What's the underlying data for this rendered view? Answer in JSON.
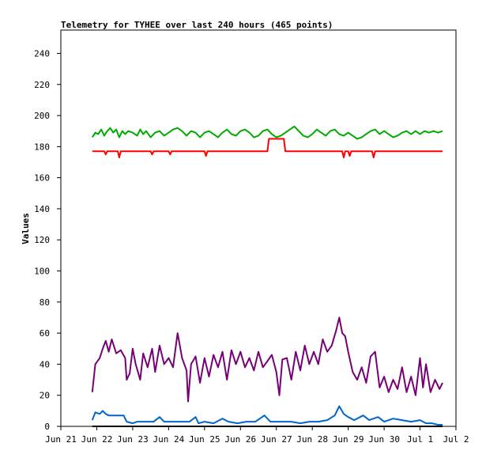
{
  "chart_data": {
    "type": "line",
    "title": "Telemetry for TYHEE over last 240 hours (465 points)",
    "xlabel": "",
    "ylabel": "Values",
    "xlim": [
      "2024-06-21T00:00",
      "2024-07-02T00:00"
    ],
    "ylim": [
      0,
      255
    ],
    "x_ticks": [
      "Jun 21",
      "Jun 22",
      "Jun 23",
      "Jun 24",
      "Jun 25",
      "Jun 26",
      "Jun 27",
      "Jun 28",
      "Jun 29",
      "Jun 30",
      "Jul 1",
      "Jul 2"
    ],
    "y_ticks": [
      0,
      20,
      40,
      60,
      80,
      100,
      120,
      140,
      160,
      180,
      200,
      220,
      240
    ],
    "grid": false,
    "legend": "none",
    "series": [
      {
        "color": "#00aa00",
        "points": [
          [
            "2024-06-21T21:00",
            186
          ],
          [
            "2024-06-21T23:00",
            189
          ],
          [
            "2024-06-22T01:00",
            188
          ],
          [
            "2024-06-22T03:00",
            191
          ],
          [
            "2024-06-22T05:00",
            187
          ],
          [
            "2024-06-22T07:00",
            190
          ],
          [
            "2024-06-22T09:00",
            192
          ],
          [
            "2024-06-22T11:00",
            189
          ],
          [
            "2024-06-22T13:00",
            191
          ],
          [
            "2024-06-22T15:00",
            186
          ],
          [
            "2024-06-22T17:00",
            190
          ],
          [
            "2024-06-22T19:00",
            188
          ],
          [
            "2024-06-22T21:00",
            190
          ],
          [
            "2024-06-23T00:00",
            189
          ],
          [
            "2024-06-23T03:00",
            187
          ],
          [
            "2024-06-23T05:00",
            191
          ],
          [
            "2024-06-23T07:00",
            188
          ],
          [
            "2024-06-23T09:00",
            190
          ],
          [
            "2024-06-23T12:00",
            186
          ],
          [
            "2024-06-23T15:00",
            189
          ],
          [
            "2024-06-23T18:00",
            190
          ],
          [
            "2024-06-23T21:00",
            187
          ],
          [
            "2024-06-24T00:00",
            189
          ],
          [
            "2024-06-24T03:00",
            191
          ],
          [
            "2024-06-24T06:00",
            192
          ],
          [
            "2024-06-24T09:00",
            190
          ],
          [
            "2024-06-24T12:00",
            187
          ],
          [
            "2024-06-24T15:00",
            190
          ],
          [
            "2024-06-24T18:00",
            189
          ],
          [
            "2024-06-24T21:00",
            186
          ],
          [
            "2024-06-25T00:00",
            189
          ],
          [
            "2024-06-25T03:00",
            190
          ],
          [
            "2024-06-25T06:00",
            188
          ],
          [
            "2024-06-25T09:00",
            186
          ],
          [
            "2024-06-25T12:00",
            189
          ],
          [
            "2024-06-25T15:00",
            191
          ],
          [
            "2024-06-25T18:00",
            188
          ],
          [
            "2024-06-25T21:00",
            187
          ],
          [
            "2024-06-26T00:00",
            190
          ],
          [
            "2024-06-26T03:00",
            191
          ],
          [
            "2024-06-26T06:00",
            189
          ],
          [
            "2024-06-26T09:00",
            186
          ],
          [
            "2024-06-26T12:00",
            187
          ],
          [
            "2024-06-26T15:00",
            190
          ],
          [
            "2024-06-26T18:00",
            191
          ],
          [
            "2024-06-26T21:00",
            188
          ],
          [
            "2024-06-27T00:00",
            186
          ],
          [
            "2024-06-27T03:00",
            187
          ],
          [
            "2024-06-27T06:00",
            189
          ],
          [
            "2024-06-27T09:00",
            191
          ],
          [
            "2024-06-27T12:00",
            193
          ],
          [
            "2024-06-27T15:00",
            190
          ],
          [
            "2024-06-27T18:00",
            187
          ],
          [
            "2024-06-27T21:00",
            186
          ],
          [
            "2024-06-28T00:00",
            188
          ],
          [
            "2024-06-28T03:00",
            191
          ],
          [
            "2024-06-28T06:00",
            189
          ],
          [
            "2024-06-28T09:00",
            187
          ],
          [
            "2024-06-28T12:00",
            190
          ],
          [
            "2024-06-28T15:00",
            191
          ],
          [
            "2024-06-28T18:00",
            188
          ],
          [
            "2024-06-28T21:00",
            187
          ],
          [
            "2024-06-29T00:00",
            189
          ],
          [
            "2024-06-29T03:00",
            187
          ],
          [
            "2024-06-29T06:00",
            185
          ],
          [
            "2024-06-29T09:00",
            186
          ],
          [
            "2024-06-29T12:00",
            188
          ],
          [
            "2024-06-29T15:00",
            190
          ],
          [
            "2024-06-29T18:00",
            191
          ],
          [
            "2024-06-29T21:00",
            188
          ],
          [
            "2024-06-30T00:00",
            190
          ],
          [
            "2024-06-30T03:00",
            188
          ],
          [
            "2024-06-30T06:00",
            186
          ],
          [
            "2024-06-30T09:00",
            187
          ],
          [
            "2024-06-30T12:00",
            189
          ],
          [
            "2024-06-30T15:00",
            190
          ],
          [
            "2024-06-30T18:00",
            188
          ],
          [
            "2024-06-30T21:00",
            190
          ],
          [
            "2024-07-01T00:00",
            188
          ],
          [
            "2024-07-01T03:00",
            190
          ],
          [
            "2024-07-01T06:00",
            189
          ],
          [
            "2024-07-01T09:00",
            190
          ],
          [
            "2024-07-01T12:00",
            189
          ],
          [
            "2024-07-01T15:00",
            190
          ]
        ]
      },
      {
        "color": "#ff0000",
        "points": [
          [
            "2024-06-21T21:00",
            177
          ],
          [
            "2024-06-22T05:00",
            177
          ],
          [
            "2024-06-22T06:00",
            175
          ],
          [
            "2024-06-22T07:00",
            177
          ],
          [
            "2024-06-22T14:00",
            177
          ],
          [
            "2024-06-22T15:00",
            173
          ],
          [
            "2024-06-22T16:00",
            177
          ],
          [
            "2024-06-23T12:00",
            177
          ],
          [
            "2024-06-23T13:00",
            175
          ],
          [
            "2024-06-23T14:00",
            177
          ],
          [
            "2024-06-24T00:00",
            177
          ],
          [
            "2024-06-24T01:00",
            175
          ],
          [
            "2024-06-24T02:00",
            177
          ],
          [
            "2024-06-25T00:00",
            177
          ],
          [
            "2024-06-25T01:00",
            174
          ],
          [
            "2024-06-25T02:00",
            177
          ],
          [
            "2024-06-26T18:00",
            177
          ],
          [
            "2024-06-26T19:00",
            185
          ],
          [
            "2024-06-27T05:00",
            185
          ],
          [
            "2024-06-27T06:00",
            177
          ],
          [
            "2024-06-28T20:00",
            177
          ],
          [
            "2024-06-28T21:00",
            173
          ],
          [
            "2024-06-28T22:00",
            177
          ],
          [
            "2024-06-29T00:00",
            177
          ],
          [
            "2024-06-29T01:00",
            174
          ],
          [
            "2024-06-29T02:00",
            177
          ],
          [
            "2024-06-29T16:00",
            177
          ],
          [
            "2024-06-29T17:00",
            173
          ],
          [
            "2024-06-29T18:00",
            177
          ],
          [
            "2024-07-01T15:00",
            177
          ]
        ]
      },
      {
        "color": "#770077",
        "points": [
          [
            "2024-06-21T21:00",
            22
          ],
          [
            "2024-06-21T23:00",
            40
          ],
          [
            "2024-06-22T02:00",
            44
          ],
          [
            "2024-06-22T04:00",
            50
          ],
          [
            "2024-06-22T06:00",
            55
          ],
          [
            "2024-06-22T08:00",
            48
          ],
          [
            "2024-06-22T10:00",
            56
          ],
          [
            "2024-06-22T13:00",
            47
          ],
          [
            "2024-06-22T16:00",
            49
          ],
          [
            "2024-06-22T19:00",
            44
          ],
          [
            "2024-06-22T20:00",
            30
          ],
          [
            "2024-06-22T22:00",
            34
          ],
          [
            "2024-06-23T00:00",
            50
          ],
          [
            "2024-06-23T02:00",
            40
          ],
          [
            "2024-06-23T05:00",
            30
          ],
          [
            "2024-06-23T07:00",
            47
          ],
          [
            "2024-06-23T10:00",
            38
          ],
          [
            "2024-06-23T13:00",
            50
          ],
          [
            "2024-06-23T15:00",
            35
          ],
          [
            "2024-06-23T18:00",
            52
          ],
          [
            "2024-06-23T21:00",
            40
          ],
          [
            "2024-06-24T00:00",
            44
          ],
          [
            "2024-06-24T03:00",
            38
          ],
          [
            "2024-06-24T06:00",
            60
          ],
          [
            "2024-06-24T09:00",
            44
          ],
          [
            "2024-06-24T12:00",
            36
          ],
          [
            "2024-06-24T13:00",
            16
          ],
          [
            "2024-06-24T15:00",
            40
          ],
          [
            "2024-06-24T18:00",
            45
          ],
          [
            "2024-06-24T21:00",
            28
          ],
          [
            "2024-06-25T00:00",
            44
          ],
          [
            "2024-06-25T03:00",
            32
          ],
          [
            "2024-06-25T06:00",
            46
          ],
          [
            "2024-06-25T09:00",
            38
          ],
          [
            "2024-06-25T12:00",
            48
          ],
          [
            "2024-06-25T15:00",
            30
          ],
          [
            "2024-06-25T18:00",
            49
          ],
          [
            "2024-06-25T21:00",
            40
          ],
          [
            "2024-06-26T00:00",
            48
          ],
          [
            "2024-06-26T03:00",
            38
          ],
          [
            "2024-06-26T06:00",
            44
          ],
          [
            "2024-06-26T09:00",
            36
          ],
          [
            "2024-06-26T12:00",
            48
          ],
          [
            "2024-06-26T15:00",
            38
          ],
          [
            "2024-06-26T18:00",
            42
          ],
          [
            "2024-06-26T21:00",
            46
          ],
          [
            "2024-06-27T00:00",
            35
          ],
          [
            "2024-06-27T02:00",
            20
          ],
          [
            "2024-06-27T04:00",
            43
          ],
          [
            "2024-06-27T07:00",
            44
          ],
          [
            "2024-06-27T10:00",
            30
          ],
          [
            "2024-06-27T13:00",
            48
          ],
          [
            "2024-06-27T16:00",
            36
          ],
          [
            "2024-06-27T19:00",
            52
          ],
          [
            "2024-06-27T22:00",
            40
          ],
          [
            "2024-06-28T01:00",
            48
          ],
          [
            "2024-06-28T04:00",
            40
          ],
          [
            "2024-06-28T07:00",
            56
          ],
          [
            "2024-06-28T10:00",
            48
          ],
          [
            "2024-06-28T13:00",
            52
          ],
          [
            "2024-06-28T16:00",
            62
          ],
          [
            "2024-06-28T18:00",
            70
          ],
          [
            "2024-06-28T20:00",
            60
          ],
          [
            "2024-06-28T22:00",
            58
          ],
          [
            "2024-06-29T00:00",
            48
          ],
          [
            "2024-06-29T03:00",
            35
          ],
          [
            "2024-06-29T06:00",
            30
          ],
          [
            "2024-06-29T09:00",
            38
          ],
          [
            "2024-06-29T12:00",
            28
          ],
          [
            "2024-06-29T15:00",
            45
          ],
          [
            "2024-06-29T18:00",
            48
          ],
          [
            "2024-06-29T21:00",
            25
          ],
          [
            "2024-06-30T00:00",
            32
          ],
          [
            "2024-06-30T03:00",
            22
          ],
          [
            "2024-06-30T06:00",
            30
          ],
          [
            "2024-06-30T09:00",
            24
          ],
          [
            "2024-06-30T12:00",
            38
          ],
          [
            "2024-06-30T15:00",
            22
          ],
          [
            "2024-06-30T18:00",
            32
          ],
          [
            "2024-06-30T21:00",
            20
          ],
          [
            "2024-07-01T00:00",
            44
          ],
          [
            "2024-07-01T02:00",
            25
          ],
          [
            "2024-07-01T04:00",
            40
          ],
          [
            "2024-07-01T07:00",
            22
          ],
          [
            "2024-07-01T10:00",
            30
          ],
          [
            "2024-07-01T13:00",
            24
          ],
          [
            "2024-07-01T15:00",
            28
          ]
        ]
      },
      {
        "color": "#0066cc",
        "points": [
          [
            "2024-06-21T21:00",
            4
          ],
          [
            "2024-06-21T23:00",
            9
          ],
          [
            "2024-06-22T02:00",
            8
          ],
          [
            "2024-06-22T04:00",
            10
          ],
          [
            "2024-06-22T06:00",
            8
          ],
          [
            "2024-06-22T08:00",
            7
          ],
          [
            "2024-06-22T12:00",
            7
          ],
          [
            "2024-06-22T18:00",
            7
          ],
          [
            "2024-06-22T20:00",
            3
          ],
          [
            "2024-06-23T00:00",
            2
          ],
          [
            "2024-06-23T03:00",
            3
          ],
          [
            "2024-06-23T08:00",
            3
          ],
          [
            "2024-06-23T14:00",
            3
          ],
          [
            "2024-06-23T18:00",
            6
          ],
          [
            "2024-06-23T21:00",
            3
          ],
          [
            "2024-06-24T02:00",
            3
          ],
          [
            "2024-06-24T08:00",
            3
          ],
          [
            "2024-06-24T14:00",
            3
          ],
          [
            "2024-06-24T18:00",
            6
          ],
          [
            "2024-06-24T20:00",
            2
          ],
          [
            "2024-06-25T00:00",
            3
          ],
          [
            "2024-06-25T06:00",
            2
          ],
          [
            "2024-06-25T12:00",
            5
          ],
          [
            "2024-06-25T16:00",
            3
          ],
          [
            "2024-06-25T22:00",
            2
          ],
          [
            "2024-06-26T04:00",
            3
          ],
          [
            "2024-06-26T10:00",
            3
          ],
          [
            "2024-06-26T16:00",
            7
          ],
          [
            "2024-06-26T20:00",
            3
          ],
          [
            "2024-06-27T03:00",
            3
          ],
          [
            "2024-06-27T10:00",
            3
          ],
          [
            "2024-06-27T16:00",
            2
          ],
          [
            "2024-06-27T22:00",
            3
          ],
          [
            "2024-06-28T04:00",
            3
          ],
          [
            "2024-06-28T10:00",
            4
          ],
          [
            "2024-06-28T15:00",
            7
          ],
          [
            "2024-06-28T18:00",
            13
          ],
          [
            "2024-06-28T21:00",
            8
          ],
          [
            "2024-06-29T00:00",
            6
          ],
          [
            "2024-06-29T04:00",
            4
          ],
          [
            "2024-06-29T10:00",
            7
          ],
          [
            "2024-06-29T14:00",
            4
          ],
          [
            "2024-06-29T20:00",
            6
          ],
          [
            "2024-06-30T00:00",
            3
          ],
          [
            "2024-06-30T06:00",
            5
          ],
          [
            "2024-06-30T12:00",
            4
          ],
          [
            "2024-06-30T18:00",
            3
          ],
          [
            "2024-07-01T00:00",
            4
          ],
          [
            "2024-07-01T04:00",
            2
          ],
          [
            "2024-07-01T08:00",
            2
          ],
          [
            "2024-07-01T12:00",
            1
          ],
          [
            "2024-07-01T15:00",
            1
          ]
        ]
      },
      {
        "color": "#000000",
        "points": [
          [
            "2024-06-21T21:00",
            0
          ],
          [
            "2024-07-01T15:00",
            0
          ]
        ]
      }
    ]
  }
}
